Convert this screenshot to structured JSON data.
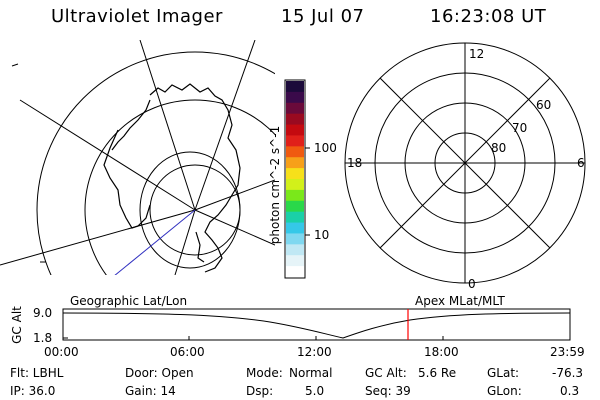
{
  "header": {
    "title": "Ultraviolet Imager",
    "date": "15 Jul 07",
    "time": "16:23:08 UT"
  },
  "colorbar": {
    "unit_label": "photon cm^-2 s^-1",
    "ticks": [
      "100",
      "10"
    ],
    "colors": [
      "#1b0a3a",
      "#3a0a4a",
      "#6a0a3a",
      "#9a0a20",
      "#c40a10",
      "#e0201a",
      "#f05a10",
      "#f7a019",
      "#f7e01a",
      "#d2f01a",
      "#7ae81a",
      "#2ad84a",
      "#1ad0a8",
      "#35c8e8",
      "#7fd8f0",
      "#c0e8f4",
      "#e6f4f8",
      "#ffffff"
    ]
  },
  "polar_plot": {
    "label_top": "12",
    "label_left": "18",
    "label_right": "6",
    "label_bottom": "0",
    "ring_labels": [
      "60",
      "70",
      "80"
    ]
  },
  "timeline": {
    "left_title": "Geographic Lat/Lon",
    "right_title": "Apex MLat/MLT",
    "ylabel": "GC Alt",
    "y_ticks": [
      "9.0",
      "1.8"
    ],
    "x_ticks": [
      "00:00",
      "06:00",
      "12:00",
      "18:00",
      "23:59"
    ],
    "marker_color": "#ff0000"
  },
  "footer": {
    "filter": "Flt: LBHL",
    "door": "Door: Open",
    "mode_label": "Mode:",
    "mode_value": "Normal",
    "gc_alt_label": "GC Alt:",
    "gc_alt_value": "5.6 Re",
    "glat_label": "GLat:",
    "glat_value": "-76.3",
    "ip": "IP: 36.0",
    "gain": "Gain: 14",
    "dsp_label": "Dsp:",
    "dsp_value": "5.0",
    "seq": "Seq: 39",
    "glon_label": "GLon:",
    "glon_value": "0.3"
  }
}
